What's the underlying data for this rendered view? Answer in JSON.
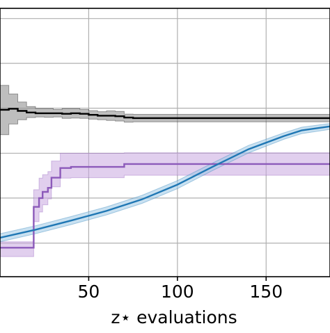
{
  "chart_data": {
    "type": "line",
    "xlabel": "z⋆ evaluations",
    "xlim": [
      0,
      186
    ],
    "ylim": [
      0,
      1
    ],
    "grid": true,
    "x_ticks": [
      {
        "value": 50,
        "label": "50"
      },
      {
        "value": 100,
        "label": "100"
      },
      {
        "value": 150,
        "label": "150"
      }
    ],
    "y_grid": [
      0.125,
      0.293,
      0.46,
      0.628,
      0.795,
      0.962
    ],
    "series": [
      {
        "color": "#000000",
        "band_color": "#888888",
        "step": true,
        "points": [
          [
            0,
            0.622
          ],
          [
            5,
            0.626
          ],
          [
            10,
            0.618
          ],
          [
            15,
            0.612
          ],
          [
            20,
            0.609
          ],
          [
            25,
            0.609
          ],
          [
            30,
            0.609
          ],
          [
            35,
            0.607
          ],
          [
            40,
            0.609
          ],
          [
            45,
            0.607
          ],
          [
            50,
            0.603
          ],
          [
            55,
            0.6
          ],
          [
            60,
            0.6
          ],
          [
            65,
            0.598
          ],
          [
            70,
            0.593
          ],
          [
            75,
            0.591
          ],
          [
            186,
            0.591
          ]
        ],
        "lower": [
          [
            0,
            0.529
          ],
          [
            5,
            0.569
          ],
          [
            10,
            0.585
          ],
          [
            15,
            0.593
          ],
          [
            20,
            0.595
          ],
          [
            25,
            0.594
          ],
          [
            30,
            0.595
          ],
          [
            35,
            0.59
          ],
          [
            40,
            0.591
          ],
          [
            45,
            0.59
          ],
          [
            50,
            0.587
          ],
          [
            55,
            0.585
          ],
          [
            60,
            0.582
          ],
          [
            65,
            0.58
          ],
          [
            70,
            0.576
          ],
          [
            75,
            0.577
          ],
          [
            186,
            0.577
          ]
        ],
        "upper": [
          [
            0,
            0.713
          ],
          [
            5,
            0.681
          ],
          [
            10,
            0.651
          ],
          [
            15,
            0.634
          ],
          [
            20,
            0.627
          ],
          [
            25,
            0.627
          ],
          [
            30,
            0.623
          ],
          [
            35,
            0.627
          ],
          [
            40,
            0.627
          ],
          [
            45,
            0.623
          ],
          [
            50,
            0.619
          ],
          [
            55,
            0.615
          ],
          [
            60,
            0.618
          ],
          [
            65,
            0.616
          ],
          [
            70,
            0.606
          ],
          [
            75,
            0.605
          ],
          [
            186,
            0.605
          ]
        ]
      },
      {
        "color": "#8c5aba",
        "band_color": "#c9a8e0",
        "step": true,
        "points": [
          [
            0,
            0.108
          ],
          [
            13,
            0.108
          ],
          [
            18,
            0.108
          ],
          [
            19,
            0.26
          ],
          [
            22,
            0.293
          ],
          [
            24,
            0.316
          ],
          [
            27,
            0.331
          ],
          [
            29,
            0.369
          ],
          [
            34,
            0.405
          ],
          [
            40,
            0.409
          ],
          [
            69,
            0.409
          ],
          [
            70,
            0.42
          ],
          [
            186,
            0.42
          ]
        ],
        "lower": [
          [
            0,
            0.075
          ],
          [
            13,
            0.075
          ],
          [
            18,
            0.075
          ],
          [
            19,
            0.205
          ],
          [
            22,
            0.241
          ],
          [
            24,
            0.268
          ],
          [
            27,
            0.29
          ],
          [
            29,
            0.335
          ],
          [
            34,
            0.367
          ],
          [
            40,
            0.369
          ],
          [
            69,
            0.369
          ],
          [
            70,
            0.378
          ],
          [
            186,
            0.378
          ]
        ],
        "upper": [
          [
            0,
            0.13
          ],
          [
            13,
            0.13
          ],
          [
            18,
            0.13
          ],
          [
            19,
            0.324
          ],
          [
            22,
            0.367
          ],
          [
            24,
            0.38
          ],
          [
            27,
            0.392
          ],
          [
            29,
            0.431
          ],
          [
            34,
            0.46
          ],
          [
            40,
            0.46
          ],
          [
            69,
            0.46
          ],
          [
            70,
            0.462
          ],
          [
            186,
            0.462
          ]
        ]
      },
      {
        "color": "#1f77b4",
        "band_color": "#9cc8e6",
        "step": false,
        "points": [
          [
            0,
            0.145
          ],
          [
            20,
            0.175
          ],
          [
            40,
            0.209
          ],
          [
            60,
            0.245
          ],
          [
            80,
            0.288
          ],
          [
            100,
            0.343
          ],
          [
            120,
            0.41
          ],
          [
            140,
            0.475
          ],
          [
            160,
            0.524
          ],
          [
            170,
            0.545
          ],
          [
            186,
            0.56
          ]
        ],
        "lower": [
          [
            0,
            0.13
          ],
          [
            20,
            0.16
          ],
          [
            40,
            0.194
          ],
          [
            60,
            0.23
          ],
          [
            80,
            0.273
          ],
          [
            100,
            0.328
          ],
          [
            120,
            0.396
          ],
          [
            140,
            0.461
          ],
          [
            160,
            0.512
          ],
          [
            170,
            0.533
          ],
          [
            186,
            0.549
          ]
        ],
        "upper": [
          [
            0,
            0.16
          ],
          [
            20,
            0.19
          ],
          [
            40,
            0.224
          ],
          [
            60,
            0.26
          ],
          [
            80,
            0.303
          ],
          [
            100,
            0.358
          ],
          [
            120,
            0.424
          ],
          [
            140,
            0.489
          ],
          [
            160,
            0.536
          ],
          [
            170,
            0.557
          ],
          [
            186,
            0.571
          ]
        ]
      }
    ]
  }
}
